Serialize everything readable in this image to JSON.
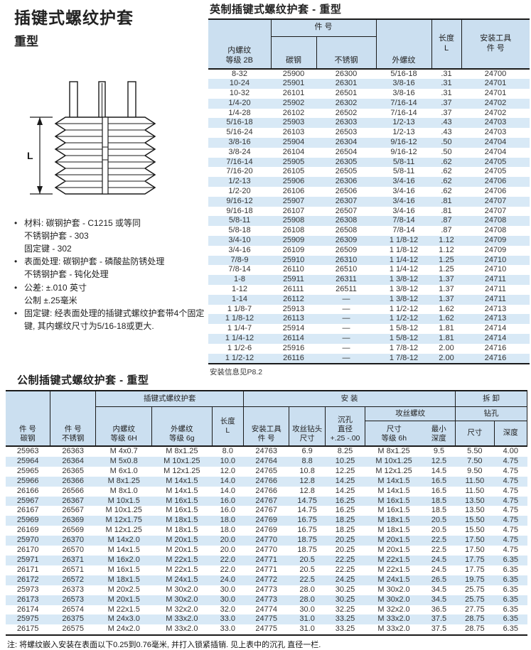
{
  "page": {
    "title": "插键式螺纹护套",
    "subtitle": "重型",
    "diagram_label": "L",
    "bullets": [
      "材料: 碳钢护套 - C1215 或等同\n不锈钢护套 - 303\n固定键 - 302",
      "表面处理: 碳钢护套 - 磷酸盐防锈处理\n不锈钢护套 - 钝化处理",
      "公差: ±.010 英寸\n公制 ±.25毫米",
      "固定键: 经表面处理的插键式螺纹护套带4个固定\n键, 其内螺纹尺寸为5/16-18或更大."
    ]
  },
  "colors": {
    "header_bg": "#cbdff0",
    "stripe_bg": "#d8e9f6"
  },
  "imperial": {
    "title": "英制插键式螺纹护套 - 重型",
    "headers": {
      "internal": "内螺纹\n等级 2B",
      "part_group": "件 号",
      "carbon": "碳钢",
      "stainless": "不锈钢",
      "external": "外螺纹",
      "length": "长度\nL",
      "tool": "安装工具\n件 号"
    },
    "rows": [
      [
        "8-32",
        "25900",
        "26300",
        "5/16-18",
        ".31",
        "24700"
      ],
      [
        "10-24",
        "25901",
        "26301",
        "3/8-16",
        ".31",
        "24701"
      ],
      [
        "10-32",
        "26101",
        "26501",
        "3/8-16",
        ".31",
        "24701"
      ],
      [
        "1/4-20",
        "25902",
        "26302",
        "7/16-14",
        ".37",
        "24702"
      ],
      [
        "1/4-28",
        "26102",
        "26502",
        "7/16-14",
        ".37",
        "24702"
      ],
      [
        "5/16-18",
        "25903",
        "26303",
        "1/2-13",
        ".43",
        "24703"
      ],
      [
        "5/16-24",
        "26103",
        "26503",
        "1/2-13",
        ".43",
        "24703"
      ],
      [
        "3/8-16",
        "25904",
        "26304",
        "9/16-12",
        ".50",
        "24704"
      ],
      [
        "3/8-24",
        "26104",
        "26504",
        "9/16-12",
        ".50",
        "24704"
      ],
      [
        "7/16-14",
        "25905",
        "26305",
        "5/8-11",
        ".62",
        "24705"
      ],
      [
        "7/16-20",
        "26105",
        "26505",
        "5/8-11",
        ".62",
        "24705"
      ],
      [
        "1/2-13",
        "25906",
        "26306",
        "3/4-16",
        ".62",
        "24706"
      ],
      [
        "1/2-20",
        "26106",
        "26506",
        "3/4-16",
        ".62",
        "24706"
      ],
      [
        "9/16-12",
        "25907",
        "26307",
        "3/4-16",
        ".81",
        "24707"
      ],
      [
        "9/16-18",
        "26107",
        "26507",
        "3/4-16",
        ".81",
        "24707"
      ],
      [
        "5/8-11",
        "25908",
        "26308",
        "7/8-14",
        ".87",
        "24708"
      ],
      [
        "5/8-18",
        "26108",
        "26508",
        "7/8-14",
        ".87",
        "24708"
      ],
      [
        "3/4-10",
        "25909",
        "26309",
        "1 1/8-12",
        "1.12",
        "24709"
      ],
      [
        "3/4-16",
        "26109",
        "26509",
        "1 1/8-12",
        "1.12",
        "24709"
      ],
      [
        "7/8-9",
        "25910",
        "26310",
        "1 1/4-12",
        "1.25",
        "24710"
      ],
      [
        "7/8-14",
        "26110",
        "26510",
        "1 1/4-12",
        "1.25",
        "24710"
      ],
      [
        "1-8",
        "25911",
        "26311",
        "1 3/8-12",
        "1.37",
        "24711"
      ],
      [
        "1-12",
        "26111",
        "26511",
        "1 3/8-12",
        "1.37",
        "24711"
      ],
      [
        "1-14",
        "26112",
        "—",
        "1 3/8-12",
        "1.37",
        "24711"
      ],
      [
        "1 1/8-7",
        "25913",
        "—",
        "1 1/2-12",
        "1.62",
        "24713"
      ],
      [
        "1 1/8-12",
        "26113",
        "—",
        "1 1/2-12",
        "1.62",
        "24713"
      ],
      [
        "1 1/4-7",
        "25914",
        "—",
        "1 5/8-12",
        "1.81",
        "24714"
      ],
      [
        "1 1/4-12",
        "26114",
        "—",
        "1 5/8-12",
        "1.81",
        "24714"
      ],
      [
        "1 1/2-6",
        "25916",
        "—",
        "1 7/8-12",
        "2.00",
        "24716"
      ],
      [
        "1 1/2-12",
        "26116",
        "—",
        "1 7/8-12",
        "2.00",
        "24716"
      ]
    ],
    "footnote": "安装信息见P8.2"
  },
  "metric": {
    "title": "公制插键式螺纹护套 - 重型",
    "headers": {
      "part_carbon": "件 号\n碳钢",
      "part_stainless": "件 号\n不锈钢",
      "insert_group": "插键式螺纹护套",
      "internal": "内螺纹\n等级 6H",
      "external": "外螺纹\n等级 6g",
      "length": "长度\nL",
      "install_group": "安 装",
      "tool": "安装工具\n件 号",
      "tap_drill": "攻丝钻头\n尺寸",
      "counterbore": "沉孔\n直径\n+.25 -.00",
      "tap_thread_group": "攻丝螺纹",
      "tap_size": "尺寸\n等级 6h",
      "min_depth": "最小\n深度",
      "removal_group": "拆 卸",
      "drill_group": "钻孔",
      "drill_size": "尺寸",
      "drill_depth": "深度"
    },
    "rows": [
      [
        "25963",
        "26363",
        "M 4x0.7",
        "M 8x1.25",
        "8.0",
        "24763",
        "6.9",
        "8.25",
        "M 8x1.25",
        "9.5",
        "5.50",
        "4.00"
      ],
      [
        "25964",
        "26364",
        "M 5x0.8",
        "M 10x1.25",
        "10.0",
        "24764",
        "8.8",
        "10.25",
        "M 10x1.25",
        "12.5",
        "7.50",
        "4.75"
      ],
      [
        "25965",
        "26365",
        "M 6x1.0",
        "M 12x1.25",
        "12.0",
        "24765",
        "10.8",
        "12.25",
        "M 12x1.25",
        "14.5",
        "9.50",
        "4.75"
      ],
      [
        "25966",
        "26366",
        "M 8x1.25",
        "M 14x1.5",
        "14.0",
        "24766",
        "12.8",
        "14.25",
        "M 14x1.5",
        "16.5",
        "11.50",
        "4.75"
      ],
      [
        "26166",
        "26566",
        "M 8x1.0",
        "M 14x1.5",
        "14.0",
        "24766",
        "12.8",
        "14.25",
        "M 14x1.5",
        "16.5",
        "11.50",
        "4.75"
      ],
      [
        "25967",
        "26367",
        "M 10x1.5",
        "M 16x1.5",
        "16.0",
        "24767",
        "14.75",
        "16.25",
        "M 16x1.5",
        "18.5",
        "13.50",
        "4.75"
      ],
      [
        "26167",
        "26567",
        "M 10x1.25",
        "M 16x1.5",
        "16.0",
        "24767",
        "14.75",
        "16.25",
        "M 16x1.5",
        "18.5",
        "13.50",
        "4.75"
      ],
      [
        "25969",
        "26369",
        "M 12x1.75",
        "M 18x1.5",
        "18.0",
        "24769",
        "16.75",
        "18.25",
        "M 18x1.5",
        "20.5",
        "15.50",
        "4.75"
      ],
      [
        "26169",
        "26569",
        "M 12x1.25",
        "M 18x1.5",
        "18.0",
        "24769",
        "16.75",
        "18.25",
        "M 18x1.5",
        "20.5",
        "15.50",
        "4.75"
      ],
      [
        "25970",
        "26370",
        "M 14x2.0",
        "M 20x1.5",
        "20.0",
        "24770",
        "18.75",
        "20.25",
        "M 20x1.5",
        "22.5",
        "17.50",
        "4.75"
      ],
      [
        "26170",
        "26570",
        "M 14x1.5",
        "M 20x1.5",
        "20.0",
        "24770",
        "18.75",
        "20.25",
        "M 20x1.5",
        "22.5",
        "17.50",
        "4.75"
      ],
      [
        "25971",
        "26371",
        "M 16x2.0",
        "M 22x1.5",
        "22.0",
        "24771",
        "20.5",
        "22.25",
        "M 22x1.5",
        "24.5",
        "17.75",
        "6.35"
      ],
      [
        "26171",
        "26571",
        "M 16x1.5",
        "M 22x1.5",
        "22.0",
        "24771",
        "20.5",
        "22.25",
        "M 22x1.5",
        "24.5",
        "17.75",
        "6.35"
      ],
      [
        "26172",
        "26572",
        "M 18x1.5",
        "M 24x1.5",
        "24.0",
        "24772",
        "22.5",
        "24.25",
        "M 24x1.5",
        "26.5",
        "19.75",
        "6.35"
      ],
      [
        "25973",
        "26373",
        "M 20x2.5",
        "M 30x2.0",
        "30.0",
        "24773",
        "28.0",
        "30.25",
        "M 30x2.0",
        "34.5",
        "25.75",
        "6.35"
      ],
      [
        "26173",
        "26573",
        "M 20x1.5",
        "M 30x2.0",
        "30.0",
        "24773",
        "28.0",
        "30.25",
        "M 30x2.0",
        "34.5",
        "25.75",
        "6.35"
      ],
      [
        "26174",
        "26574",
        "M 22x1.5",
        "M 32x2.0",
        "32.0",
        "24774",
        "30.0",
        "32.25",
        "M 32x2.0",
        "36.5",
        "27.75",
        "6.35"
      ],
      [
        "25975",
        "26375",
        "M 24x3.0",
        "M 33x2.0",
        "33.0",
        "24775",
        "31.0",
        "33.25",
        "M 33x2.0",
        "37.5",
        "28.75",
        "6.35"
      ],
      [
        "26175",
        "26575",
        "M 24x2.0",
        "M 33x2.0",
        "33.0",
        "24775",
        "31.0",
        "33.25",
        "M 33x2.0",
        "37.5",
        "28.75",
        "6.35"
      ]
    ],
    "note": "注: 将螺纹嵌入安装在表面以下0.25到0.76毫米, 并打入锁紧插销. 见上表中的沉孔 直径一栏."
  }
}
